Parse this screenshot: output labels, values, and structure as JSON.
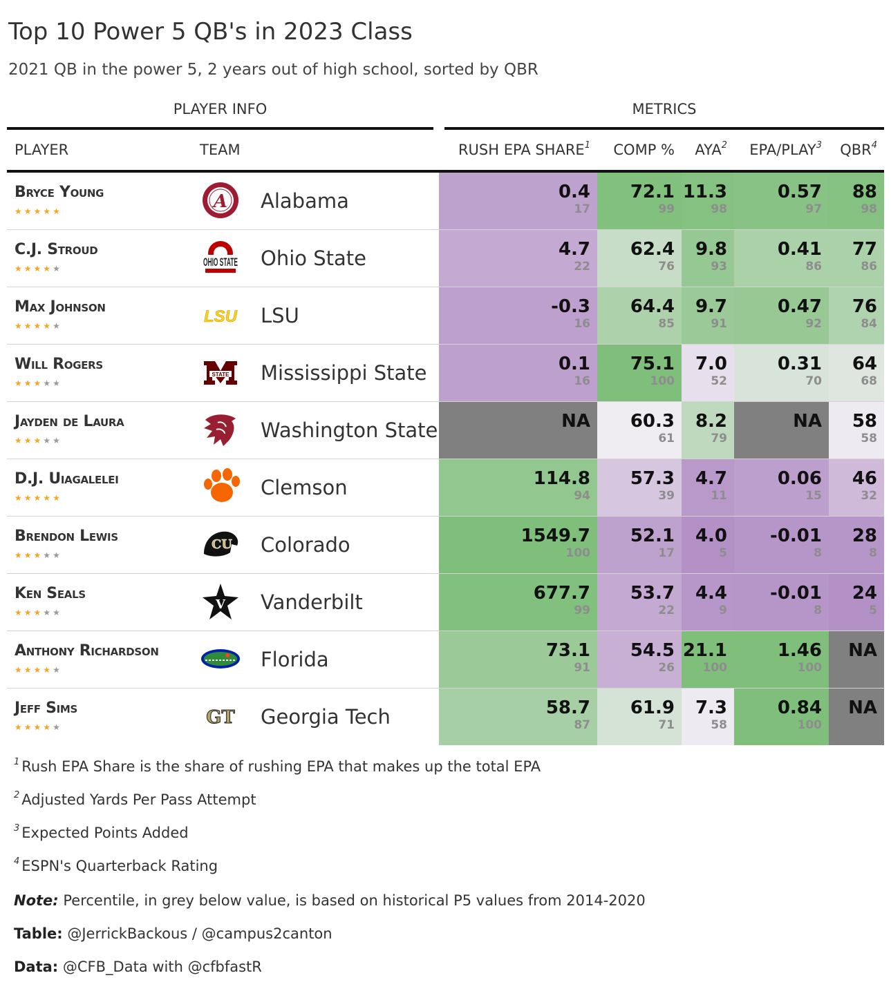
{
  "title": "Top 10 Power 5 QB's in 2023 Class",
  "subtitle": "2021 QB in the power 5, 2 years out of high school, sorted by QBR",
  "spanners": {
    "player_info": "PLAYER INFO",
    "metrics": "METRICS"
  },
  "columns": {
    "player": "PLAYER",
    "team": "TEAM",
    "rush": "RUSH EPA SHARE",
    "rush_sup": "1",
    "comp": "COMP %",
    "aya": "AYA",
    "aya_sup": "2",
    "epa": "EPA/PLAY",
    "epa_sup": "3",
    "qbr": "QBR",
    "qbr_sup": "4"
  },
  "colors": {
    "na": "#808080",
    "low": "#b08cc4",
    "mid": "#f1eef3",
    "high": "#7fbf7b",
    "star_on": "#f5a623",
    "star_off": "#9a9a9a"
  },
  "chart_data": {
    "type": "table",
    "title": "Top 10 Power 5 QB's in 2023 Class",
    "color_scale": "percentile 0-100: purple (low) to white to green (high); NA grey",
    "rows": [
      {
        "player": "Bryce Young",
        "stars": 5,
        "team": "Alabama",
        "logo": "alabama-logo",
        "rush": {
          "value": "0.4",
          "pct": 17
        },
        "comp": {
          "value": "72.1",
          "pct": 99
        },
        "aya": {
          "value": "11.3",
          "pct": 98
        },
        "epa": {
          "value": "0.57",
          "pct": 97
        },
        "qbr": {
          "value": "88",
          "pct": 98
        }
      },
      {
        "player": "C.J. Stroud",
        "stars": 4,
        "team": "Ohio State",
        "logo": "ohio-state-logo",
        "rush": {
          "value": "4.7",
          "pct": 22
        },
        "comp": {
          "value": "62.4",
          "pct": 76
        },
        "aya": {
          "value": "9.8",
          "pct": 93
        },
        "epa": {
          "value": "0.41",
          "pct": 86
        },
        "qbr": {
          "value": "77",
          "pct": 86
        }
      },
      {
        "player": "Max Johnson",
        "stars": 4,
        "team": "LSU",
        "logo": "lsu-logo",
        "rush": {
          "value": "-0.3",
          "pct": 16
        },
        "comp": {
          "value": "64.4",
          "pct": 85
        },
        "aya": {
          "value": "9.7",
          "pct": 91
        },
        "epa": {
          "value": "0.47",
          "pct": 92
        },
        "qbr": {
          "value": "76",
          "pct": 84
        }
      },
      {
        "player": "Will Rogers",
        "stars": 3,
        "team": "Mississippi State",
        "logo": "mississippi-state-logo",
        "rush": {
          "value": "0.1",
          "pct": 16
        },
        "comp": {
          "value": "75.1",
          "pct": 100
        },
        "aya": {
          "value": "7.0",
          "pct": 52
        },
        "epa": {
          "value": "0.31",
          "pct": 70
        },
        "qbr": {
          "value": "64",
          "pct": 68
        }
      },
      {
        "player": "Jayden de Laura",
        "stars": 3,
        "team": "Washington State",
        "logo": "washington-state-logo",
        "rush": {
          "value": "NA",
          "pct": null
        },
        "comp": {
          "value": "60.3",
          "pct": 61
        },
        "aya": {
          "value": "8.2",
          "pct": 79
        },
        "epa": {
          "value": "NA",
          "pct": null
        },
        "qbr": {
          "value": "58",
          "pct": 58
        }
      },
      {
        "player": "D.J. Uiagalelei",
        "stars": 5,
        "team": "Clemson",
        "logo": "clemson-logo",
        "rush": {
          "value": "114.8",
          "pct": 94
        },
        "comp": {
          "value": "57.3",
          "pct": 39
        },
        "aya": {
          "value": "4.7",
          "pct": 11
        },
        "epa": {
          "value": "0.06",
          "pct": 15
        },
        "qbr": {
          "value": "46",
          "pct": 32
        }
      },
      {
        "player": "Brendon Lewis",
        "stars": 3,
        "team": "Colorado",
        "logo": "colorado-logo",
        "rush": {
          "value": "1549.7",
          "pct": 100
        },
        "comp": {
          "value": "52.1",
          "pct": 17
        },
        "aya": {
          "value": "4.0",
          "pct": 5
        },
        "epa": {
          "value": "-0.01",
          "pct": 8
        },
        "qbr": {
          "value": "28",
          "pct": 8
        }
      },
      {
        "player": "Ken Seals",
        "stars": 3,
        "team": "Vanderbilt",
        "logo": "vanderbilt-logo",
        "rush": {
          "value": "677.7",
          "pct": 99
        },
        "comp": {
          "value": "53.7",
          "pct": 22
        },
        "aya": {
          "value": "4.4",
          "pct": 9
        },
        "epa": {
          "value": "-0.01",
          "pct": 8
        },
        "qbr": {
          "value": "24",
          "pct": 5
        }
      },
      {
        "player": "Anthony Richardson",
        "stars": 4,
        "team": "Florida",
        "logo": "florida-logo",
        "rush": {
          "value": "73.1",
          "pct": 91
        },
        "comp": {
          "value": "54.5",
          "pct": 26
        },
        "aya": {
          "value": "21.1",
          "pct": 100
        },
        "epa": {
          "value": "1.46",
          "pct": 100
        },
        "qbr": {
          "value": "NA",
          "pct": null
        }
      },
      {
        "player": "Jeff Sims",
        "stars": 4,
        "team": "Georgia Tech",
        "logo": "georgia-tech-logo",
        "rush": {
          "value": "58.7",
          "pct": 87
        },
        "comp": {
          "value": "61.9",
          "pct": 71
        },
        "aya": {
          "value": "7.3",
          "pct": 58
        },
        "epa": {
          "value": "0.84",
          "pct": 100
        },
        "qbr": {
          "value": "NA",
          "pct": null
        }
      }
    ]
  },
  "footnotes": [
    {
      "num": "1",
      "text": "Rush EPA Share is the share of rushing EPA that makes up the total EPA"
    },
    {
      "num": "2",
      "text": "Adjusted Yards Per Pass Attempt"
    },
    {
      "num": "3",
      "text": "Expected Points Added"
    },
    {
      "num": "4",
      "text": "ESPN's Quarterback Rating"
    }
  ],
  "notes": [
    {
      "label": "Note:",
      "text": " Percentile, in grey below value, is based on historical P5 values from 2014-2020"
    },
    {
      "label": "Table:",
      "text": " @JerrickBackous / @campus2canton"
    },
    {
      "label": "Data:",
      "text": " @CFB_Data with @cfbfastR"
    }
  ]
}
